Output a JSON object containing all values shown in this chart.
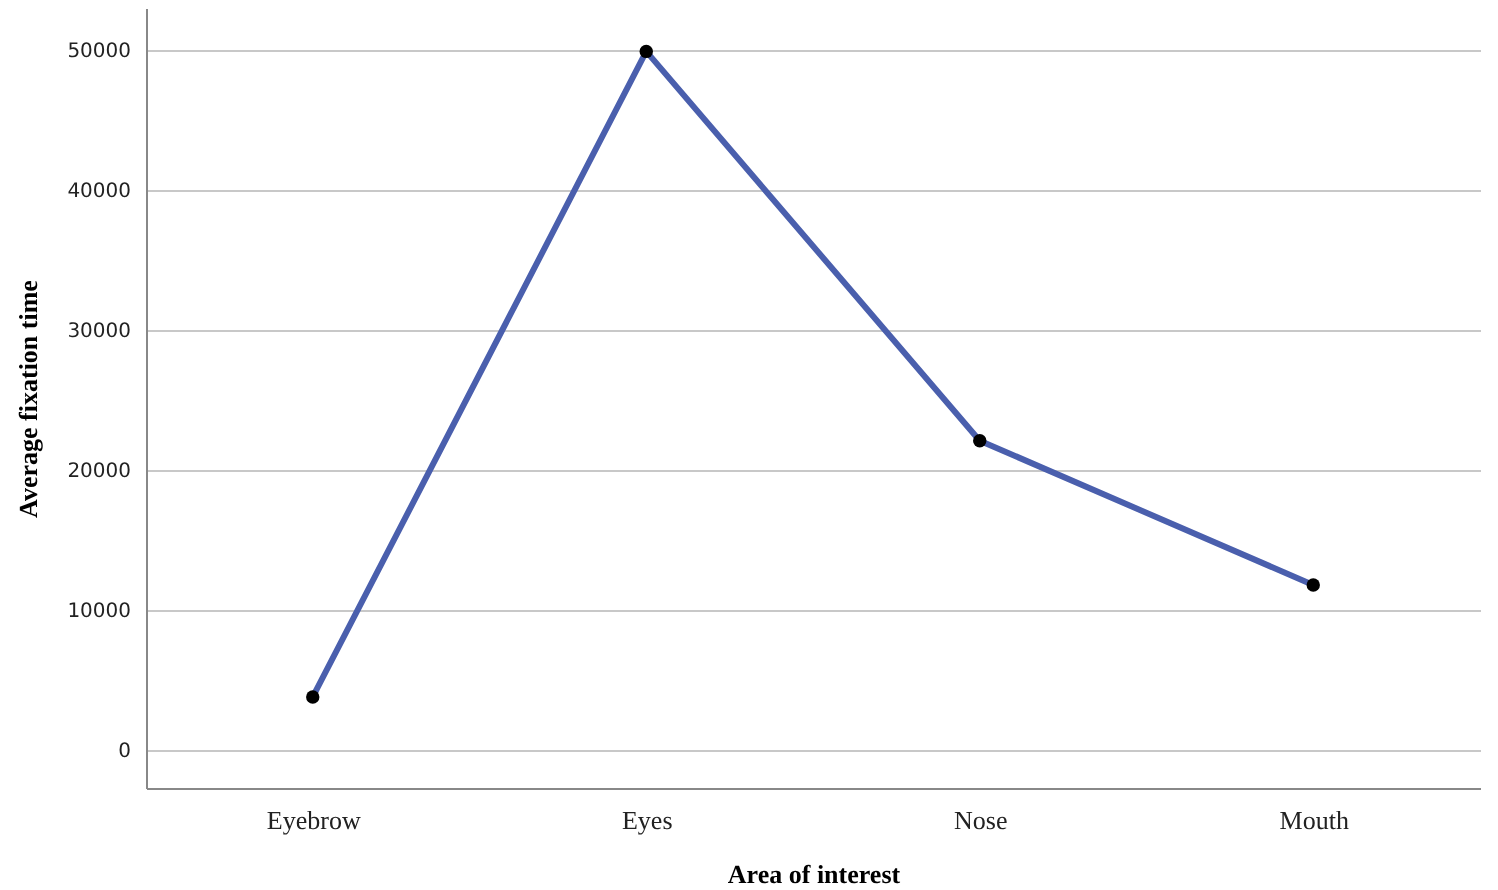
{
  "chart_data": {
    "type": "line",
    "xlabel": "Area of interest",
    "ylabel": "Average fixation time",
    "categories": [
      "Eyebrow",
      "Eyes",
      "Nose",
      "Mouth"
    ],
    "series": [
      {
        "color": "#4a5fad",
        "values": [
          3800,
          49900,
          22100,
          11800
        ]
      }
    ],
    "ylim": [
      -2700,
      53000
    ],
    "yticks": [
      0,
      10000,
      20000,
      30000,
      40000,
      50000
    ],
    "grid": "y",
    "marker": "circle",
    "line_style": "solid"
  }
}
